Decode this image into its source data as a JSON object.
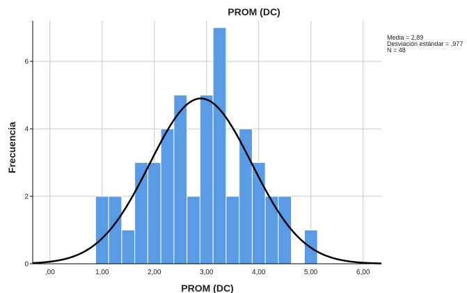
{
  "chart_data": {
    "type": "histogram",
    "title": "PROM (DC)",
    "xlabel": "PROM (DC)",
    "ylabel": "Frecuencia",
    "xlim": [
      -0.33,
      6.35
    ],
    "ylim": [
      0,
      7.2
    ],
    "x_ticks": [
      0,
      1,
      2,
      3,
      4,
      5,
      6
    ],
    "x_tick_labels": [
      ",00",
      "1,00",
      "2,00",
      "3,00",
      "4,00",
      "5,00",
      "6,00"
    ],
    "y_ticks": [
      0,
      2,
      4,
      6
    ],
    "y_tick_labels": [
      "0",
      "2",
      "4",
      "6"
    ],
    "bin_width": 0.25,
    "bins": [
      {
        "start": 0.875,
        "count": 2
      },
      {
        "start": 1.125,
        "count": 2
      },
      {
        "start": 1.375,
        "count": 1
      },
      {
        "start": 1.625,
        "count": 3
      },
      {
        "start": 1.875,
        "count": 3
      },
      {
        "start": 2.125,
        "count": 4
      },
      {
        "start": 2.375,
        "count": 5
      },
      {
        "start": 2.625,
        "count": 2
      },
      {
        "start": 2.875,
        "count": 5
      },
      {
        "start": 3.125,
        "count": 7
      },
      {
        "start": 3.375,
        "count": 2
      },
      {
        "start": 3.625,
        "count": 4
      },
      {
        "start": 3.875,
        "count": 3
      },
      {
        "start": 4.125,
        "count": 2
      },
      {
        "start": 4.375,
        "count": 2
      },
      {
        "start": 4.875,
        "count": 1
      }
    ],
    "normal_curve": {
      "mean": 2.89,
      "sd": 0.977,
      "n": 48
    },
    "stats_lines": [
      "Media = 2,89",
      "Desviación estándar = ,977",
      "N = 48"
    ],
    "bar_color": "#5a9be6",
    "bar_edge_color": "#ffffff",
    "curve_color": "#000000",
    "grid": true,
    "grid_color": "#c8c8c8"
  }
}
